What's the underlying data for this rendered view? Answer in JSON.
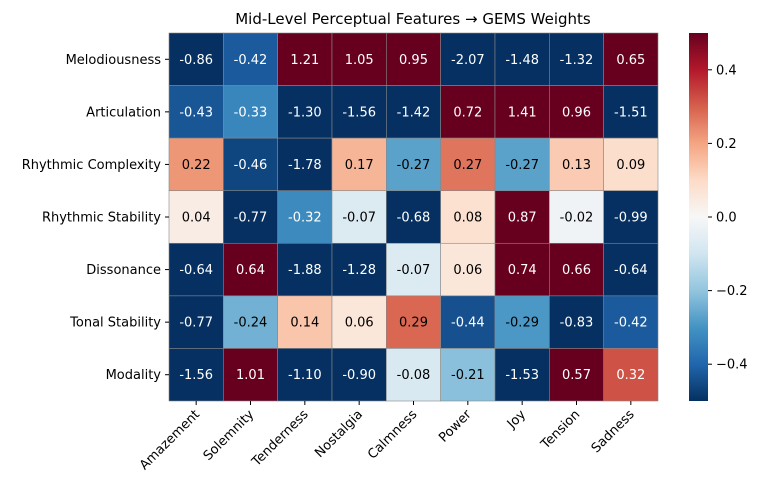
{
  "chart_data": {
    "type": "heatmap",
    "title": "Mid-Level Perceptual Features → GEMS Weights",
    "rows": [
      "Melodiousness",
      "Articulation",
      "Rhythmic Complexity",
      "Rhythmic Stability",
      "Dissonance",
      "Tonal Stability",
      "Modality"
    ],
    "columns": [
      "Amazement",
      "Solemnity",
      "Tenderness",
      "Nostalgia",
      "Calmness",
      "Power",
      "Joy",
      "Tension",
      "Sadness"
    ],
    "values": [
      [
        -0.86,
        -0.42,
        1.21,
        1.05,
        0.95,
        -2.07,
        -1.48,
        -1.32,
        0.65
      ],
      [
        -0.43,
        -0.33,
        -1.3,
        -1.56,
        -1.42,
        0.72,
        1.41,
        0.96,
        -1.51
      ],
      [
        0.22,
        -0.46,
        -1.78,
        0.17,
        -0.27,
        0.27,
        -0.27,
        0.13,
        0.09
      ],
      [
        0.04,
        -0.77,
        -0.32,
        -0.07,
        -0.68,
        0.08,
        0.87,
        -0.02,
        -0.99
      ],
      [
        -0.64,
        0.64,
        -1.88,
        -1.28,
        -0.07,
        0.06,
        0.74,
        0.66,
        -0.64
      ],
      [
        -0.77,
        -0.24,
        0.14,
        0.06,
        0.29,
        -0.44,
        -0.29,
        -0.83,
        -0.42
      ],
      [
        -1.56,
        1.01,
        -1.1,
        -0.9,
        -0.08,
        -0.21,
        -1.53,
        0.57,
        0.32
      ]
    ],
    "color_scale": {
      "colormap": "RdBu_r",
      "vmin": -0.5,
      "vmax": 0.5,
      "ticks": [
        -0.4,
        -0.2,
        0.0,
        0.2,
        0.4
      ],
      "tick_labels": [
        "−0.4",
        "−0.2",
        "0.0",
        "0.2",
        "0.4"
      ]
    },
    "annotations": "two-decimal values in each cell",
    "xlabel": "",
    "ylabel": "",
    "colors": {
      "cell_border": "#888888",
      "text_light": "#ffffff",
      "text_dark": "#000000"
    }
  }
}
